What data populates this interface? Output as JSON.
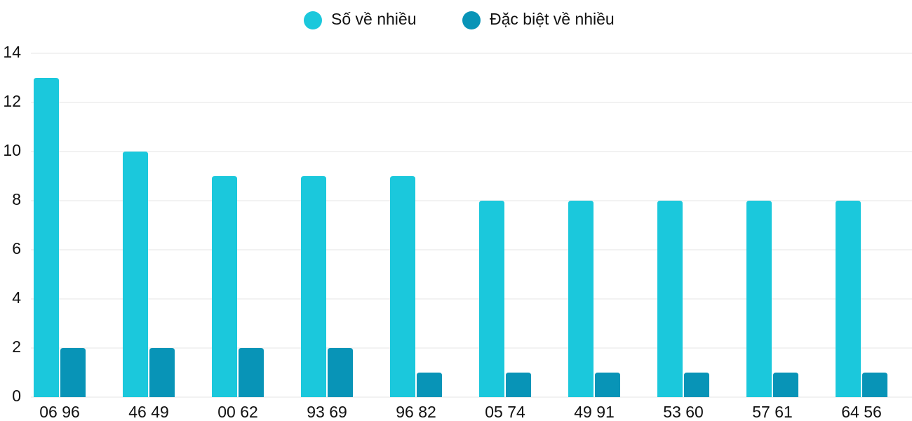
{
  "chart_data": {
    "type": "bar",
    "categories": [
      "06 96",
      "46 49",
      "00 62",
      "93 69",
      "96 82",
      "05 74",
      "49 91",
      "53 60",
      "57 61",
      "64 56"
    ],
    "series": [
      {
        "name": "Số về nhiều",
        "color": "#1bc8dc",
        "values": [
          13,
          10,
          9,
          9,
          9,
          8,
          8,
          8,
          8,
          8
        ]
      },
      {
        "name": "Đặc biệt về nhiều",
        "color": "#0894b7",
        "values": [
          2,
          2,
          2,
          2,
          1,
          1,
          1,
          1,
          1,
          1
        ]
      }
    ],
    "ylim": [
      0,
      14
    ],
    "yticks": [
      0,
      2,
      4,
      6,
      8,
      10,
      12,
      14
    ],
    "grid": true,
    "legend": "top"
  }
}
